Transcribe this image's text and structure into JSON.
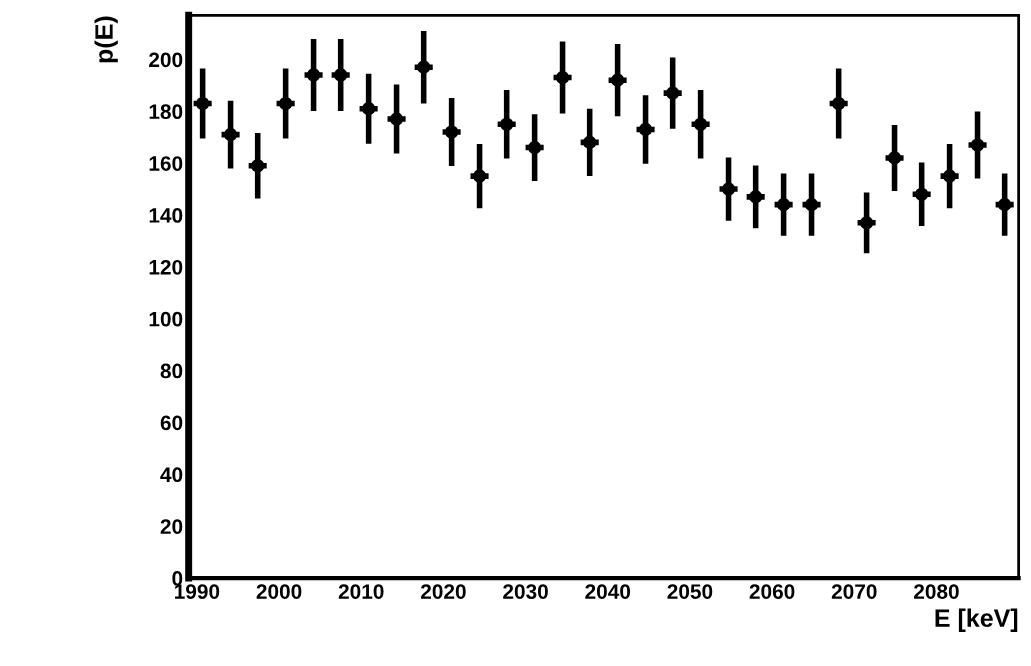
{
  "chart_data": {
    "type": "scatter",
    "xlabel": "E [keV]",
    "ylabel": "p(E)",
    "x": [
      1990.7,
      1994.1,
      1997.4,
      2000.8,
      2004.2,
      2007.5,
      2010.9,
      2014.3,
      2017.6,
      2021.0,
      2024.4,
      2027.7,
      2031.1,
      2034.5,
      2037.8,
      2041.2,
      2044.6,
      2047.9,
      2051.3,
      2054.7,
      2058.0,
      2061.4,
      2064.8,
      2068.1,
      2071.5,
      2074.9,
      2078.2,
      2081.6,
      2085.0,
      2088.3
    ],
    "series": [
      {
        "color": "#000000",
        "values": [
          183,
          171,
          159,
          183,
          194,
          194,
          181,
          177,
          197,
          172,
          155,
          175,
          166,
          193,
          168,
          192,
          173,
          187,
          175,
          150,
          147,
          144,
          144,
          183,
          137,
          162,
          148,
          155,
          167,
          144
        ],
        "errors": [
          13.5,
          13.1,
          12.6,
          13.5,
          13.9,
          13.9,
          13.5,
          13.3,
          14.0,
          13.1,
          12.4,
          13.2,
          12.9,
          13.9,
          13.0,
          13.9,
          13.2,
          13.7,
          13.2,
          12.2,
          12.1,
          12.0,
          12.0,
          13.5,
          11.7,
          12.7,
          12.2,
          12.4,
          12.9,
          12.0
        ],
        "xerrors": [
          1.1,
          1.1,
          1.1,
          1.1,
          1.1,
          1.1,
          1.1,
          1.1,
          1.1,
          1.1,
          1.1,
          1.1,
          1.1,
          1.1,
          1.1,
          1.1,
          1.1,
          1.1,
          1.1,
          1.1,
          1.1,
          1.1,
          1.1,
          1.1,
          1.1,
          1.1,
          1.1,
          1.1,
          1.1,
          1.1
        ]
      }
    ],
    "xlim": [
      1989,
      2090
    ],
    "ylim": [
      0,
      217
    ],
    "xticks": [
      1990,
      2000,
      2010,
      2020,
      2030,
      2040,
      2050,
      2060,
      2070,
      2080
    ],
    "yticks": [
      0,
      20,
      40,
      60,
      80,
      100,
      120,
      140,
      160,
      180,
      200
    ],
    "marker": "circle",
    "grid": false,
    "legend": false
  }
}
